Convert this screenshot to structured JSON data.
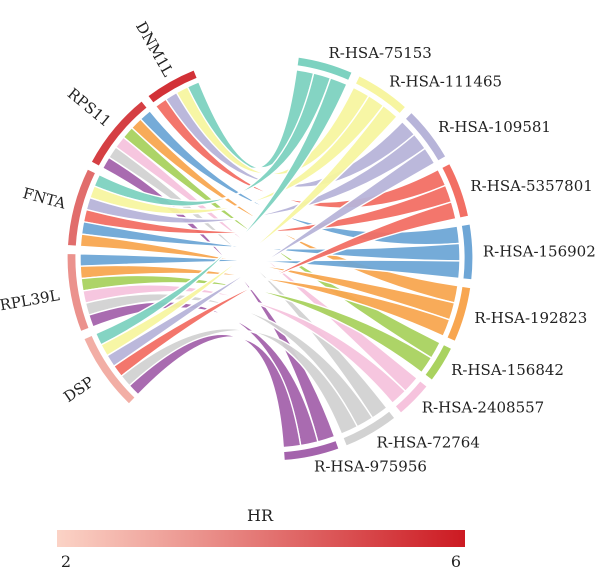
{
  "chart_data": {
    "type": "chord",
    "genes": [
      {
        "name": "DNM1L",
        "hr": 5.5
      },
      {
        "name": "RPS11",
        "hr": 5.2
      },
      {
        "name": "FNTA",
        "hr": 4.2
      },
      {
        "name": "RPL39L",
        "hr": 3.4
      },
      {
        "name": "DSP",
        "hr": 2.8
      }
    ],
    "pathways": [
      {
        "name": "R-HSA-75153",
        "color": "#7dd2c0"
      },
      {
        "name": "R-HSA-111465",
        "color": "#f7f5a0"
      },
      {
        "name": "R-HSA-109581",
        "color": "#b7b4d9"
      },
      {
        "name": "R-HSA-5357801",
        "color": "#f26f64"
      },
      {
        "name": "R-HSA-156902",
        "color": "#6ea6d6"
      },
      {
        "name": "R-HSA-192823",
        "color": "#f8a650"
      },
      {
        "name": "R-HSA-156842",
        "color": "#a9d25f"
      },
      {
        "name": "R-HSA-2408557",
        "color": "#f6c3dd"
      },
      {
        "name": "R-HSA-72764",
        "color": "#d2d2d2"
      },
      {
        "name": "R-HSA-975956",
        "color": "#a463ac"
      }
    ],
    "links": [
      {
        "gene": "DNM1L",
        "pathways": [
          "R-HSA-75153",
          "R-HSA-111465",
          "R-HSA-109581",
          "R-HSA-5357801"
        ]
      },
      {
        "gene": "RPS11",
        "pathways": [
          "R-HSA-156902",
          "R-HSA-192823",
          "R-HSA-156842",
          "R-HSA-2408557",
          "R-HSA-72764",
          "R-HSA-975956"
        ]
      },
      {
        "gene": "FNTA",
        "pathways": [
          "R-HSA-75153",
          "R-HSA-111465",
          "R-HSA-109581",
          "R-HSA-5357801",
          "R-HSA-156902",
          "R-HSA-192823"
        ]
      },
      {
        "gene": "RPL39L",
        "pathways": [
          "R-HSA-156902",
          "R-HSA-192823",
          "R-HSA-156842",
          "R-HSA-2408557",
          "R-HSA-72764",
          "R-HSA-975956"
        ]
      },
      {
        "gene": "DSP",
        "pathways": [
          "R-HSA-75153",
          "R-HSA-111465",
          "R-HSA-109581",
          "R-HSA-5357801",
          "R-HSA-72764",
          "R-HSA-975956"
        ]
      }
    ],
    "legend": {
      "title": "HR",
      "min_label": "2",
      "max_label": "6",
      "range": [
        2,
        6
      ],
      "color_low": "#fbd3c6",
      "color_high": "#cc1a22"
    }
  }
}
